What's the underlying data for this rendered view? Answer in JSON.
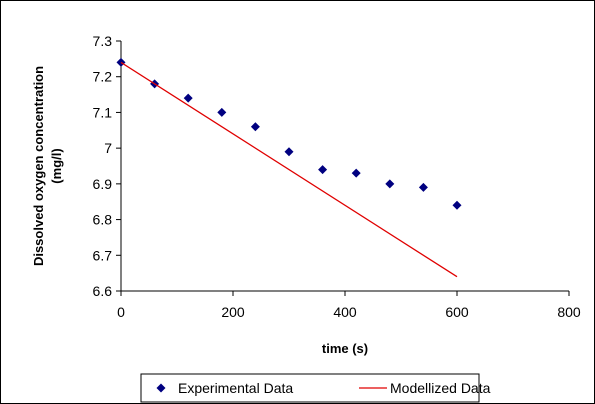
{
  "chart_data": {
    "type": "scatter",
    "title": "",
    "xlabel": "time (s)",
    "ylabel_line1": "Dissolved oxygen concentration",
    "ylabel_line2": "(mg/l)",
    "xlim": [
      0,
      800
    ],
    "ylim": [
      6.6,
      7.3
    ],
    "x_ticks": [
      0,
      200,
      400,
      600,
      800
    ],
    "y_ticks": [
      6.6,
      6.7,
      6.8,
      6.9,
      7,
      7.1,
      7.2,
      7.3
    ],
    "x_tick_labels": [
      "0",
      "200",
      "400",
      "600",
      "800"
    ],
    "y_tick_labels": [
      "6.6",
      "6.7",
      "6.8",
      "6.9",
      "7",
      "7.1",
      "7.2",
      "7.3"
    ],
    "grid": false,
    "legend_position": "bottom",
    "series": [
      {
        "name": "Experimental Data",
        "kind": "scatter",
        "marker": "diamond",
        "color": "#000080",
        "x": [
          0,
          60,
          120,
          180,
          240,
          300,
          360,
          420,
          480,
          540,
          600
        ],
        "y": [
          7.24,
          7.18,
          7.14,
          7.1,
          7.06,
          6.99,
          6.94,
          6.93,
          6.9,
          6.89,
          6.84
        ]
      },
      {
        "name": "Modellized Data",
        "kind": "line",
        "color": "#e00000",
        "x": [
          0,
          600
        ],
        "y": [
          7.24,
          6.64
        ]
      }
    ]
  }
}
